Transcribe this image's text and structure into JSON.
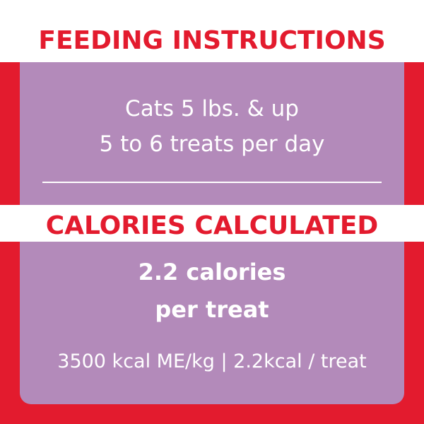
{
  "feeding": {
    "title": "FEEDING INSTRUCTIONS",
    "lines": [
      "Cats 5 lbs. & up",
      "5 to 6 treats per day"
    ]
  },
  "calories": {
    "title": "CALORIES CALCULATED",
    "lines": [
      "2.2 calories",
      "per treat"
    ],
    "note": "3500 kcal ME/kg | 2.2kcal / treat"
  }
}
